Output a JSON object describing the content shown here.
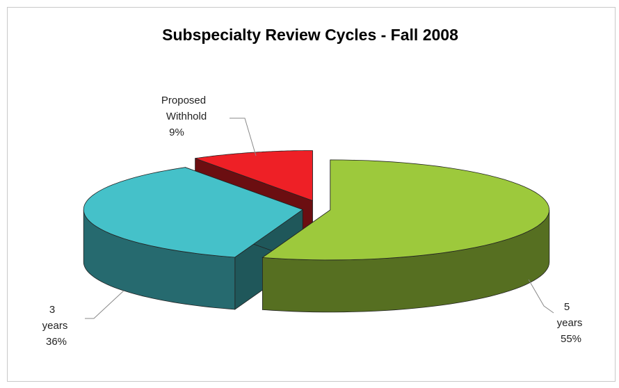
{
  "chart_data": {
    "type": "pie3d",
    "title": "Subspecialty Review Cycles - Fall 2008",
    "categories": [
      "5 years",
      "3 years",
      "Proposed Withhold"
    ],
    "values": [
      55,
      36,
      9
    ],
    "value_labels": [
      "55%",
      "36%",
      "9%"
    ],
    "colors": [
      "#9dc93c",
      "#45c1c9",
      "#ee2026"
    ]
  }
}
